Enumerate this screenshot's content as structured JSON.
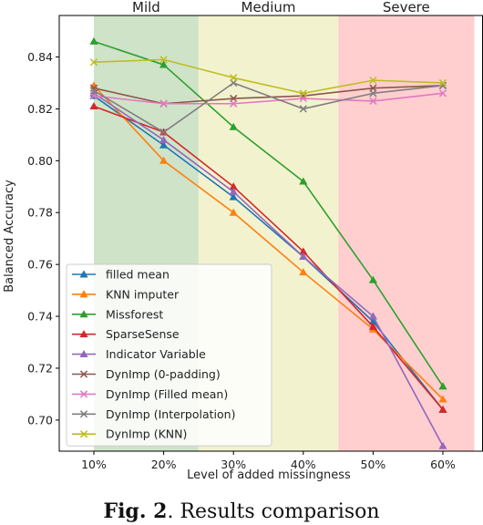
{
  "chart_data": {
    "type": "line",
    "xlabel": "Level of added missingness",
    "ylabel": "Balanced Accuracy",
    "x": [
      "10%",
      "20%",
      "30%",
      "40%",
      "50%",
      "60%"
    ],
    "ylim": [
      0.688,
      0.856
    ],
    "yticks": [
      "0.70",
      "0.72",
      "0.74",
      "0.76",
      "0.78",
      "0.80",
      "0.82",
      "0.84"
    ],
    "regions": [
      {
        "label": "Mild",
        "from": 0.0,
        "to": 1.5,
        "color": "#cfe3c9"
      },
      {
        "label": "Medium",
        "from": 1.5,
        "to": 3.5,
        "color": "#f3f2cf"
      },
      {
        "label": "Severe",
        "from": 3.5,
        "to": 5.45,
        "color": "#ffcfcf"
      }
    ],
    "legend_position": "lower-left",
    "grid": false,
    "series": [
      {
        "name": "filled mean",
        "color": "#1f77b4",
        "marker": "triangle",
        "values": [
          0.825,
          0.806,
          0.786,
          0.763,
          0.738,
          0.704
        ]
      },
      {
        "name": "KNN imputer",
        "color": "#ff7f0e",
        "marker": "triangle",
        "values": [
          0.829,
          0.8,
          0.78,
          0.757,
          0.735,
          0.708
        ]
      },
      {
        "name": "Missforest",
        "color": "#2ca02c",
        "marker": "triangle",
        "values": [
          0.846,
          0.837,
          0.813,
          0.792,
          0.754,
          0.713
        ]
      },
      {
        "name": "SparseSense",
        "color": "#d62728",
        "marker": "triangle",
        "values": [
          0.821,
          0.811,
          0.79,
          0.765,
          0.736,
          0.704
        ]
      },
      {
        "name": "Indicator Variable",
        "color": "#9467bd",
        "marker": "triangle",
        "values": [
          0.826,
          0.808,
          0.788,
          0.763,
          0.74,
          0.69
        ]
      },
      {
        "name": "DynImp (0-padding)",
        "color": "#8c564b",
        "marker": "x",
        "values": [
          0.828,
          0.822,
          0.824,
          0.825,
          0.828,
          0.829
        ]
      },
      {
        "name": "DynImp (Filled mean)",
        "color": "#e377c2",
        "marker": "x",
        "values": [
          0.825,
          0.822,
          0.822,
          0.824,
          0.823,
          0.826
        ]
      },
      {
        "name": "DynImp (Interpolation)",
        "color": "#7f7f7f",
        "marker": "x",
        "values": [
          0.827,
          0.811,
          0.83,
          0.82,
          0.826,
          0.829
        ]
      },
      {
        "name": "DynImp (KNN)",
        "color": "#bcbd22",
        "marker": "x",
        "values": [
          0.838,
          0.839,
          0.832,
          0.826,
          0.831,
          0.83
        ]
      }
    ]
  },
  "caption": {
    "label": "Fig. 2",
    "text": ". Results comparison"
  }
}
